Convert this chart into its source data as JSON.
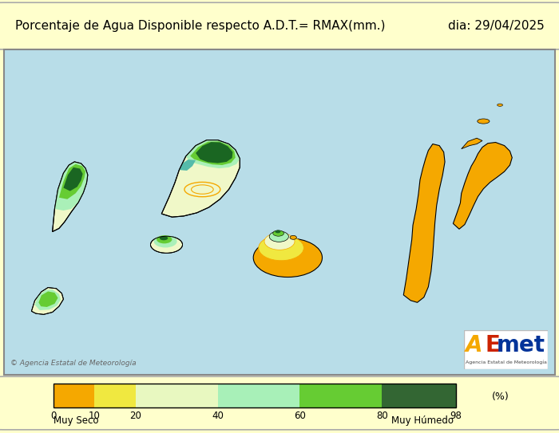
{
  "title_left": "Porcentaje de Agua Disponible respecto A.D.T.= RMAX(mm.)",
  "title_right": "dia: 29/04/2025",
  "title_bg": "#ffffcc",
  "map_bg": "#b8dde8",
  "legend_bg": "#ffffcc",
  "outer_bg": "#ffffcc",
  "colorbar_colors": [
    "#f5a800",
    "#f0e840",
    "#e8f8c0",
    "#a8f0b8",
    "#66cc33",
    "#336633"
  ],
  "colorbar_bounds": [
    0,
    10,
    20,
    40,
    60,
    80,
    98
  ],
  "colorbar_labels": [
    "0",
    "10",
    "20",
    "40",
    "60",
    "80",
    "98"
  ],
  "label_muy_seco": "Muy Seco",
  "label_muy_humedo": "Muy Húmedo",
  "label_pct": "(%)",
  "copyright_text": "© Agencia Estatal de Meteorología",
  "font_size_title": 11,
  "font_size_labels": 9,
  "figsize": [
    7.0,
    5.43
  ]
}
